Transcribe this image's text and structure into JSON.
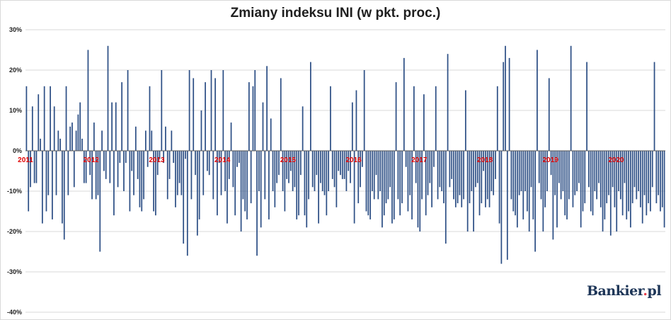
{
  "page": {
    "title": "Zmiany indeksu INI (w pkt. proc.)",
    "logo_text": "Bankier",
    "logo_dot": ".",
    "logo_suffix": "pl"
  },
  "colors": {
    "bar": "#2e5086",
    "year_label": "#e00000",
    "grid": "#d9d9d9",
    "axis_text": "#1f1f1f",
    "logo": "#1d3557",
    "logo_dot": "#e63946"
  },
  "chart_data": {
    "type": "bar",
    "title": "Zmiany indeksu INI (w pkt. proc.)",
    "xlabel": "",
    "ylabel": "",
    "ylim": [
      -40,
      30
    ],
    "y_ticks": [
      "30%",
      "20%",
      "10%",
      "0%",
      "-10%",
      "-20%",
      "-30%",
      "-40%"
    ],
    "y_tick_values": [
      30,
      20,
      10,
      0,
      -10,
      -20,
      -30,
      -40
    ],
    "grid": true,
    "legend": "none",
    "year_labels": [
      "2011",
      "2012",
      "2013",
      "2014",
      "2015",
      "2016",
      "2017",
      "2018",
      "2019",
      "2020"
    ],
    "series": [
      {
        "values": [
          16,
          -15,
          -9,
          11,
          -8,
          -8,
          14,
          3,
          -18,
          16,
          -15,
          -11,
          16,
          -17,
          11,
          -11,
          5,
          3,
          -18,
          -22,
          16,
          -11,
          6,
          7,
          -9,
          5,
          9,
          12,
          3,
          -8,
          -8,
          25,
          -6,
          -12,
          7,
          -12,
          -11,
          -25,
          5,
          -5,
          -7,
          26,
          -8,
          12,
          -16,
          12,
          -9,
          -3,
          17,
          -10,
          -3,
          20,
          -15,
          -5,
          -11,
          6,
          -7,
          -14,
          -15,
          -12,
          5,
          -4,
          16,
          5,
          -15,
          -16,
          -6,
          -2,
          20,
          -3,
          6,
          -12,
          -7,
          5,
          -3,
          -14,
          -11,
          -8,
          -11,
          -23,
          -2,
          -26,
          20,
          -12,
          18,
          -6,
          -21,
          -17,
          10,
          -11,
          17,
          -5,
          -6,
          20,
          -12,
          18,
          -16,
          -3,
          -11,
          20,
          -10,
          -18,
          -7,
          7,
          -9,
          -16,
          -4,
          -3,
          -20,
          -12,
          -15,
          -17,
          17,
          -13,
          16,
          20,
          -26,
          -10,
          -19,
          12,
          -12,
          21,
          -17,
          8,
          -10,
          -14,
          -8,
          -6,
          18,
          -10,
          -15,
          -7,
          -8,
          -5,
          -10,
          -9,
          -17,
          -16,
          -6,
          11,
          -16,
          -19,
          -12,
          22,
          -9,
          -10,
          -6,
          -18,
          -8,
          -10,
          -11,
          -16,
          -10,
          16,
          -7,
          -9,
          -14,
          -5,
          -6,
          -7,
          -7,
          -10,
          -5,
          -8,
          12,
          -18,
          15,
          -13,
          -9,
          -4,
          20,
          -15,
          -16,
          -17,
          -10,
          -12,
          -6,
          -12,
          -10,
          -19,
          -16,
          -13,
          -12,
          -9,
          -18,
          -17,
          17,
          -12,
          -16,
          -13,
          23,
          -4,
          -15,
          -11,
          -17,
          16,
          -8,
          -19,
          -20,
          -12,
          14,
          -16,
          -11,
          -8,
          -14,
          -4,
          16,
          -12,
          -9,
          -10,
          -13,
          -23,
          24,
          -9,
          -7,
          -12,
          -14,
          -13,
          -11,
          -14,
          -12,
          15,
          -20,
          -13,
          -10,
          -20,
          -9,
          -8,
          -16,
          -13,
          -5,
          -14,
          -12,
          -14,
          -10,
          -11,
          -7,
          16,
          -18,
          -28,
          22,
          26,
          -27,
          23,
          -12,
          -15,
          -16,
          -19,
          -11,
          -10,
          -17,
          -10,
          -15,
          -20,
          -9,
          -17,
          -25,
          25,
          -8,
          -12,
          -20,
          -14,
          -10,
          18,
          -6,
          -22,
          -11,
          -19,
          -8,
          -12,
          -10,
          -16,
          -17,
          -12,
          26,
          -14,
          -11,
          -10,
          -8,
          -19,
          -15,
          -13,
          22,
          -9,
          -15,
          -16,
          -10,
          -12,
          -8,
          -14,
          -20,
          -17,
          -13,
          -11,
          -21,
          -9,
          -14,
          -20,
          -10,
          -12,
          -16,
          -8,
          -17,
          -15,
          -19,
          -13,
          -9,
          -12,
          -10,
          -14,
          -18,
          -11,
          -16,
          -13,
          -15,
          -9,
          22,
          -13,
          -11,
          -15,
          -14,
          -19
        ]
      }
    ]
  }
}
